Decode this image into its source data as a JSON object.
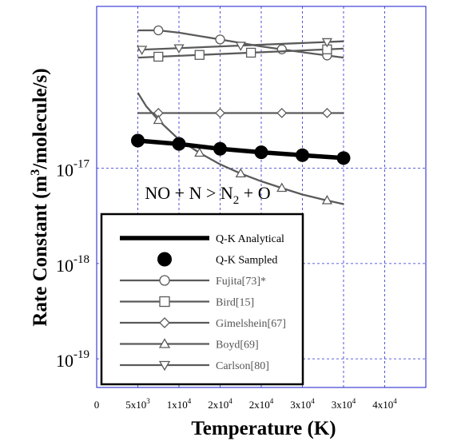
{
  "chart_data": {
    "type": "line",
    "xlabel": "Temperature (K)",
    "ylabel_main": "Rate Constant (m",
    "ylabel_sup": "3",
    "ylabel_tail": "/molecule/s)",
    "annotation": {
      "parts": [
        "NO + N > N",
        "2",
        " + O"
      ]
    },
    "x_scale": "linear",
    "xlim": [
      0,
      40000
    ],
    "x_ticks": [
      {
        "v": 0,
        "m": "0",
        "e": ""
      },
      {
        "v": 5000,
        "m": "5x10",
        "e": "3"
      },
      {
        "v": 10000,
        "m": "1x10",
        "e": "4"
      },
      {
        "v": 15000,
        "m": "2x10",
        "e": "4"
      },
      {
        "v": 20000,
        "m": "2x10",
        "e": "4"
      },
      {
        "v": 25000,
        "m": "3x10",
        "e": "4"
      },
      {
        "v": 30000,
        "m": "3x10",
        "e": "4"
      },
      {
        "v": 35000,
        "m": "4x10",
        "e": "4"
      }
    ],
    "y_scale": "log",
    "ylim": [
      5e-20,
      5e-16
    ],
    "y_ticks": [
      {
        "v": 1e-19,
        "m": "10",
        "e": "-19"
      },
      {
        "v": 1e-18,
        "m": "10",
        "e": "-18"
      },
      {
        "v": 1e-17,
        "m": "10",
        "e": "-17"
      }
    ],
    "grid": true,
    "legend_position": "bottom-left",
    "series": [
      {
        "name": "Q-K Analytical",
        "style": "thick-line",
        "color": "#000000",
        "x": [
          5000,
          10000,
          15000,
          20000,
          25000,
          30000
        ],
        "y": [
          1.95e-17,
          1.8e-17,
          1.6e-17,
          1.47e-17,
          1.37e-17,
          1.28e-17
        ]
      },
      {
        "name": "Q-K Sampled",
        "style": "filled-circle",
        "color": "#000000",
        "x": [
          5000,
          10000,
          15000,
          20000,
          25000,
          30000
        ],
        "y": [
          1.95e-17,
          1.8e-17,
          1.6e-17,
          1.47e-17,
          1.37e-17,
          1.28e-17
        ]
      },
      {
        "name": "Fujita[73]*",
        "marker": "circle",
        "color": "#5a5a5a",
        "x": [
          5000,
          7500,
          10000,
          15000,
          20000,
          25000,
          30000
        ],
        "y": [
          2.8e-16,
          2.8e-16,
          2.65e-16,
          2.25e-16,
          1.9e-16,
          1.65e-16,
          1.45e-16
        ],
        "marker_x": [
          7500,
          15000,
          22500,
          28000
        ]
      },
      {
        "name": "Bird[15]",
        "marker": "square",
        "color": "#5a5a5a",
        "x": [
          5000,
          30000
        ],
        "y": [
          1.45e-16,
          1.8e-16
        ],
        "marker_x": [
          7500,
          12500,
          18750,
          28000
        ]
      },
      {
        "name": "Gimelshein[67]",
        "marker": "diamond",
        "color": "#5a5a5a",
        "x": [
          5000,
          30000
        ],
        "y": [
          3.8e-17,
          3.8e-17
        ],
        "marker_x": [
          7500,
          15000,
          22500,
          28000
        ]
      },
      {
        "name": "Boyd[69]",
        "marker": "triangle",
        "color": "#5a5a5a",
        "x": [
          5000,
          6000,
          7500,
          10000,
          12500,
          15000,
          17500,
          20000,
          22500,
          25000,
          27500,
          30000
        ],
        "y": [
          6.2e-17,
          4.5e-17,
          3.2e-17,
          2e-17,
          1.45e-17,
          1.1e-17,
          8.8e-18,
          7.3e-18,
          6.2e-18,
          5.3e-18,
          4.7e-18,
          4.2e-18
        ],
        "marker_x": [
          7500,
          12500,
          17500,
          22500,
          28000
        ]
      },
      {
        "name": "Carlson[80]",
        "marker": "triangle-down",
        "color": "#5a5a5a",
        "x": [
          5000,
          30000
        ],
        "y": [
          1.75e-16,
          2.15e-16
        ],
        "marker_x": [
          5500,
          10000,
          17500,
          28000
        ]
      }
    ]
  }
}
